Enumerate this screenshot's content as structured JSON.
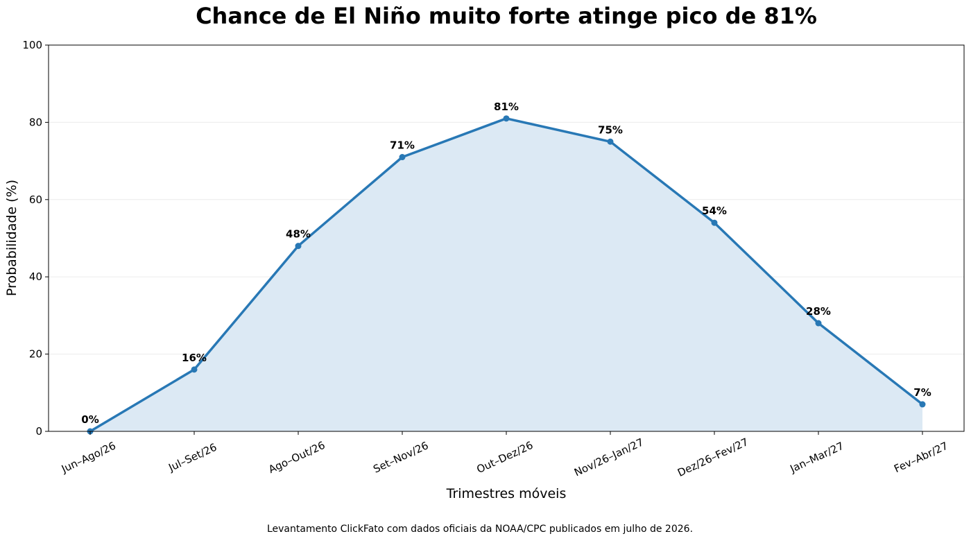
{
  "chart_data": {
    "type": "area",
    "title": "Chance de El Niño muito forte atinge pico de 81%",
    "xlabel": "Trimestres móveis",
    "ylabel": "Probabilidade (%)",
    "categories": [
      "Jun–Ago/26",
      "Jul–Set/26",
      "Ago–Out/26",
      "Set–Nov/26",
      "Out–Dez/26",
      "Nov/26–Jan/27",
      "Dez/26–Fev/27",
      "Jan–Mar/27",
      "Fev–Abr/27"
    ],
    "values": [
      0,
      16,
      48,
      71,
      81,
      75,
      54,
      28,
      7
    ],
    "data_labels": [
      "0%",
      "16%",
      "48%",
      "71%",
      "81%",
      "75%",
      "54%",
      "28%",
      "7%"
    ],
    "ylim": [
      0,
      100
    ],
    "yticks": [
      0,
      20,
      40,
      60,
      80,
      100
    ],
    "ytick_labels": [
      "0",
      "20",
      "40",
      "60",
      "80",
      "100"
    ],
    "grid": "horizontal",
    "line_color": "#2878b5",
    "fill_color": "#dce9f4",
    "grid_color": "#ececec",
    "footnote": "Levantamento ClickFato com dados oficiais da NOAA/CPC publicados em julho de 2026."
  }
}
